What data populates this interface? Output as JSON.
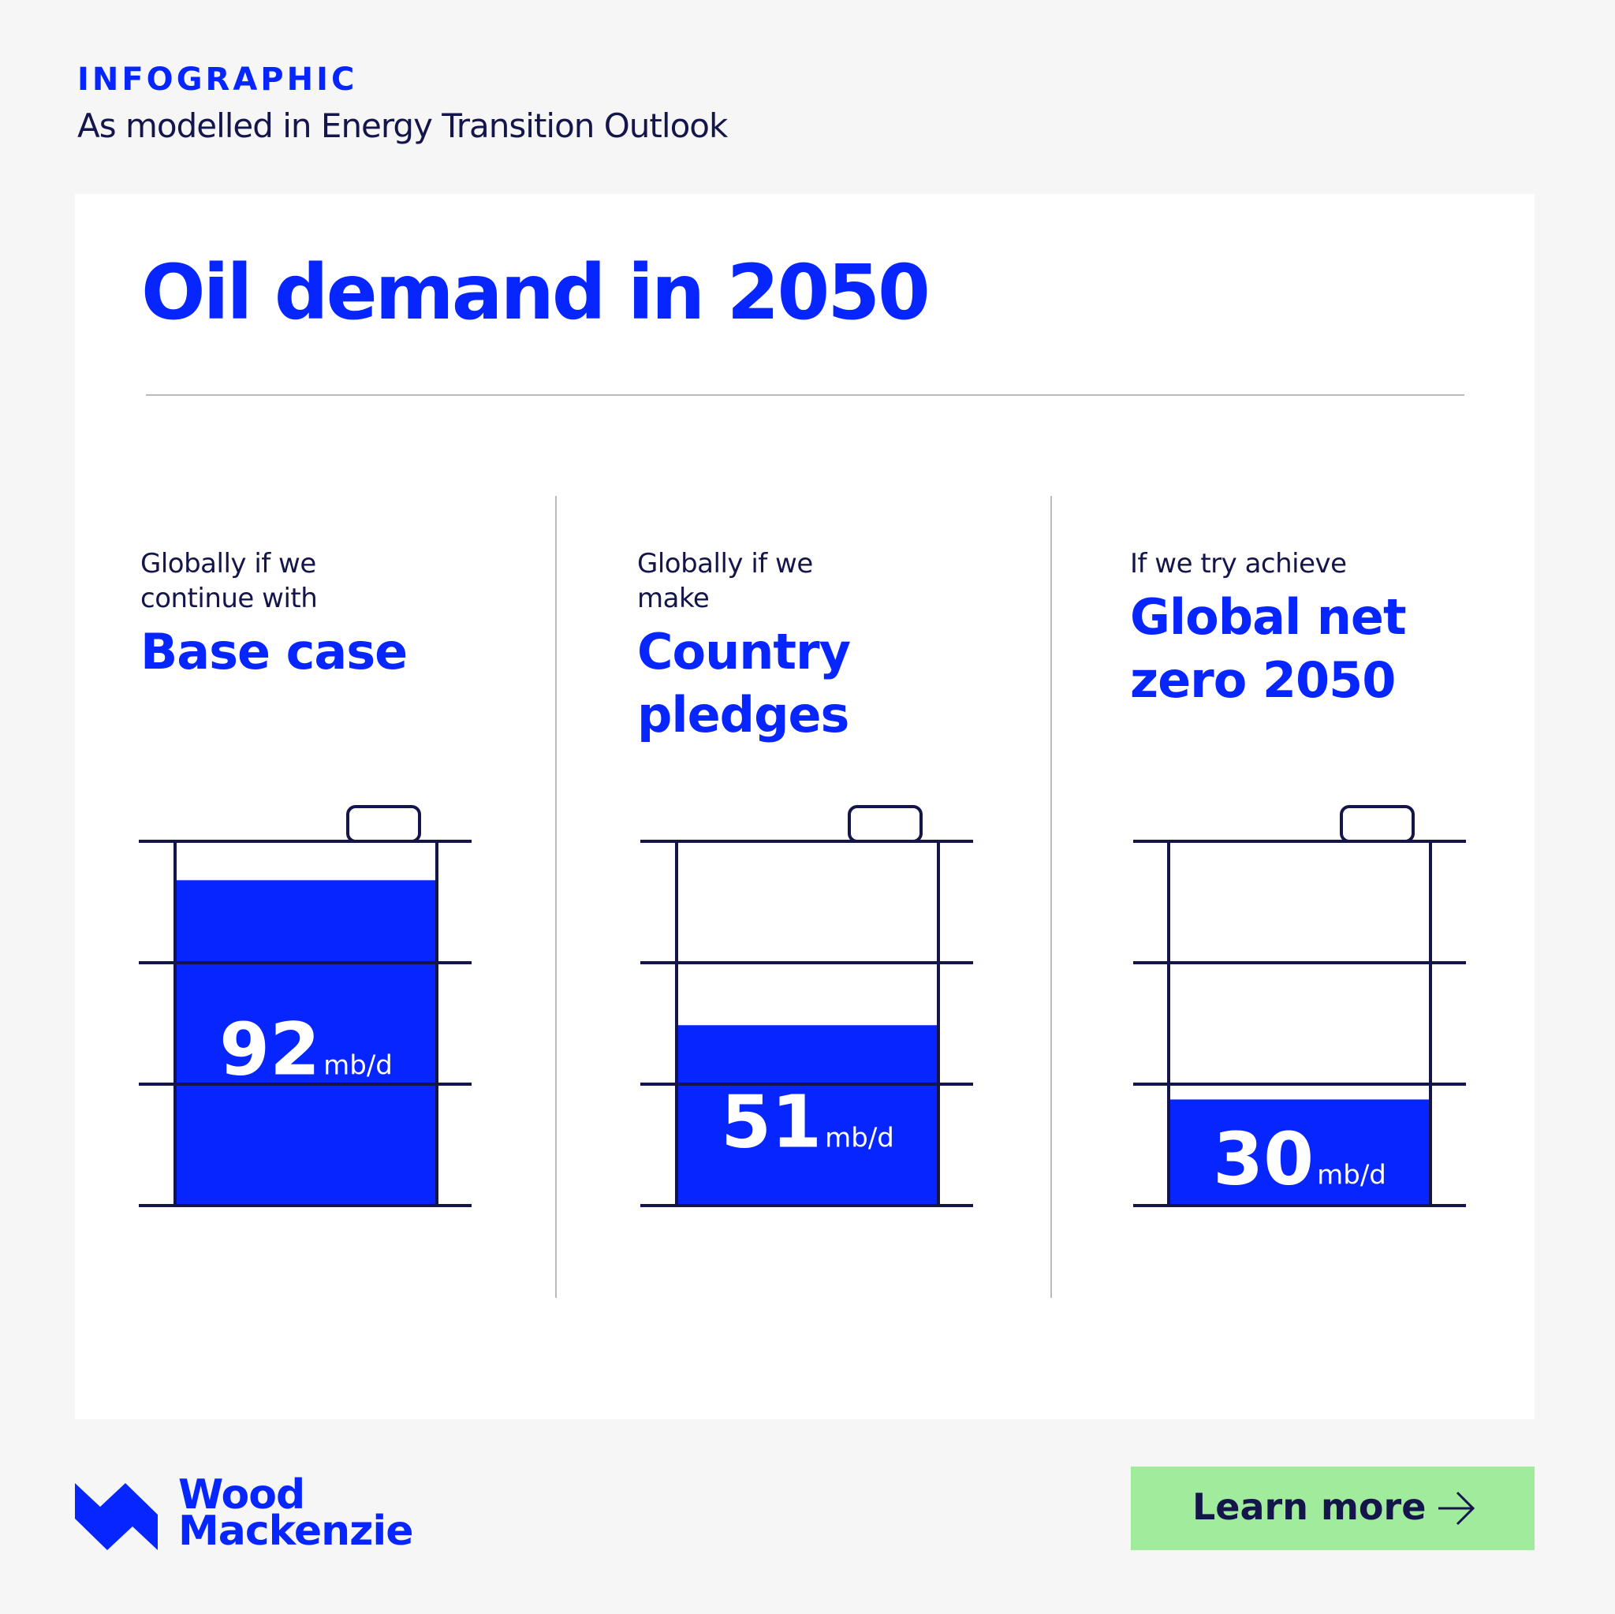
{
  "header": {
    "kicker": "INFOGRAPHIC",
    "subtitle": "As modelled in Energy Transition Outlook"
  },
  "chart_data": {
    "type": "barrel",
    "title": "Oil demand in 2050",
    "intros": [
      "Globally if we continue with",
      "Globally if we make",
      "If we try achieve"
    ],
    "categories": [
      "Base case",
      "Country pledges",
      "Global net zero 2050"
    ],
    "values": [
      92,
      51,
      30
    ],
    "unit": "mb/d",
    "color": "#0625ff",
    "ylim": [
      0,
      103
    ]
  },
  "footer": {
    "logo": [
      "Wood",
      "Mackenzie"
    ],
    "button": "Learn more"
  }
}
